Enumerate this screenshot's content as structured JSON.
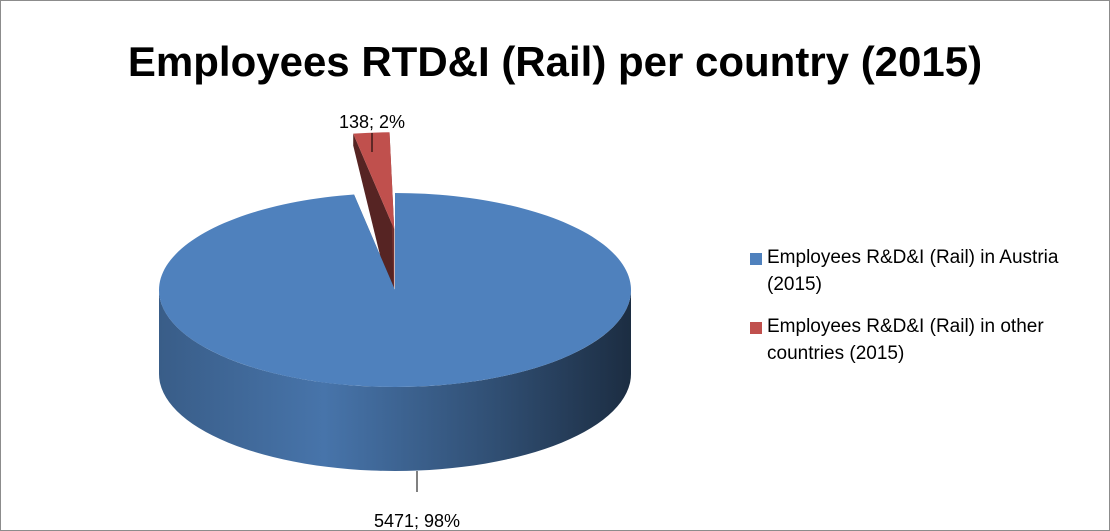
{
  "chart_data": {
    "type": "pie",
    "title": "Employees RTD&I (Rail) per country (2015)",
    "three_d": true,
    "legend_position": "right",
    "slices": [
      {
        "name": "Employees R&D&I (Rail) in Austria (2015)",
        "legend_label": "Employees R&D&I (Rail) in Austria (2015)",
        "value": 5471,
        "percent": 98,
        "data_label": "5471; 98%",
        "color": "#4f81bd",
        "exploded": false
      },
      {
        "name": "Employees R&D&I (Rail) in other countries (2015)",
        "legend_label": "Employees R&D&I (Rail) in other countries (2015)",
        "value": 138,
        "percent": 2,
        "data_label": "138; 2%",
        "color": "#c0504d",
        "exploded": true
      }
    ]
  }
}
